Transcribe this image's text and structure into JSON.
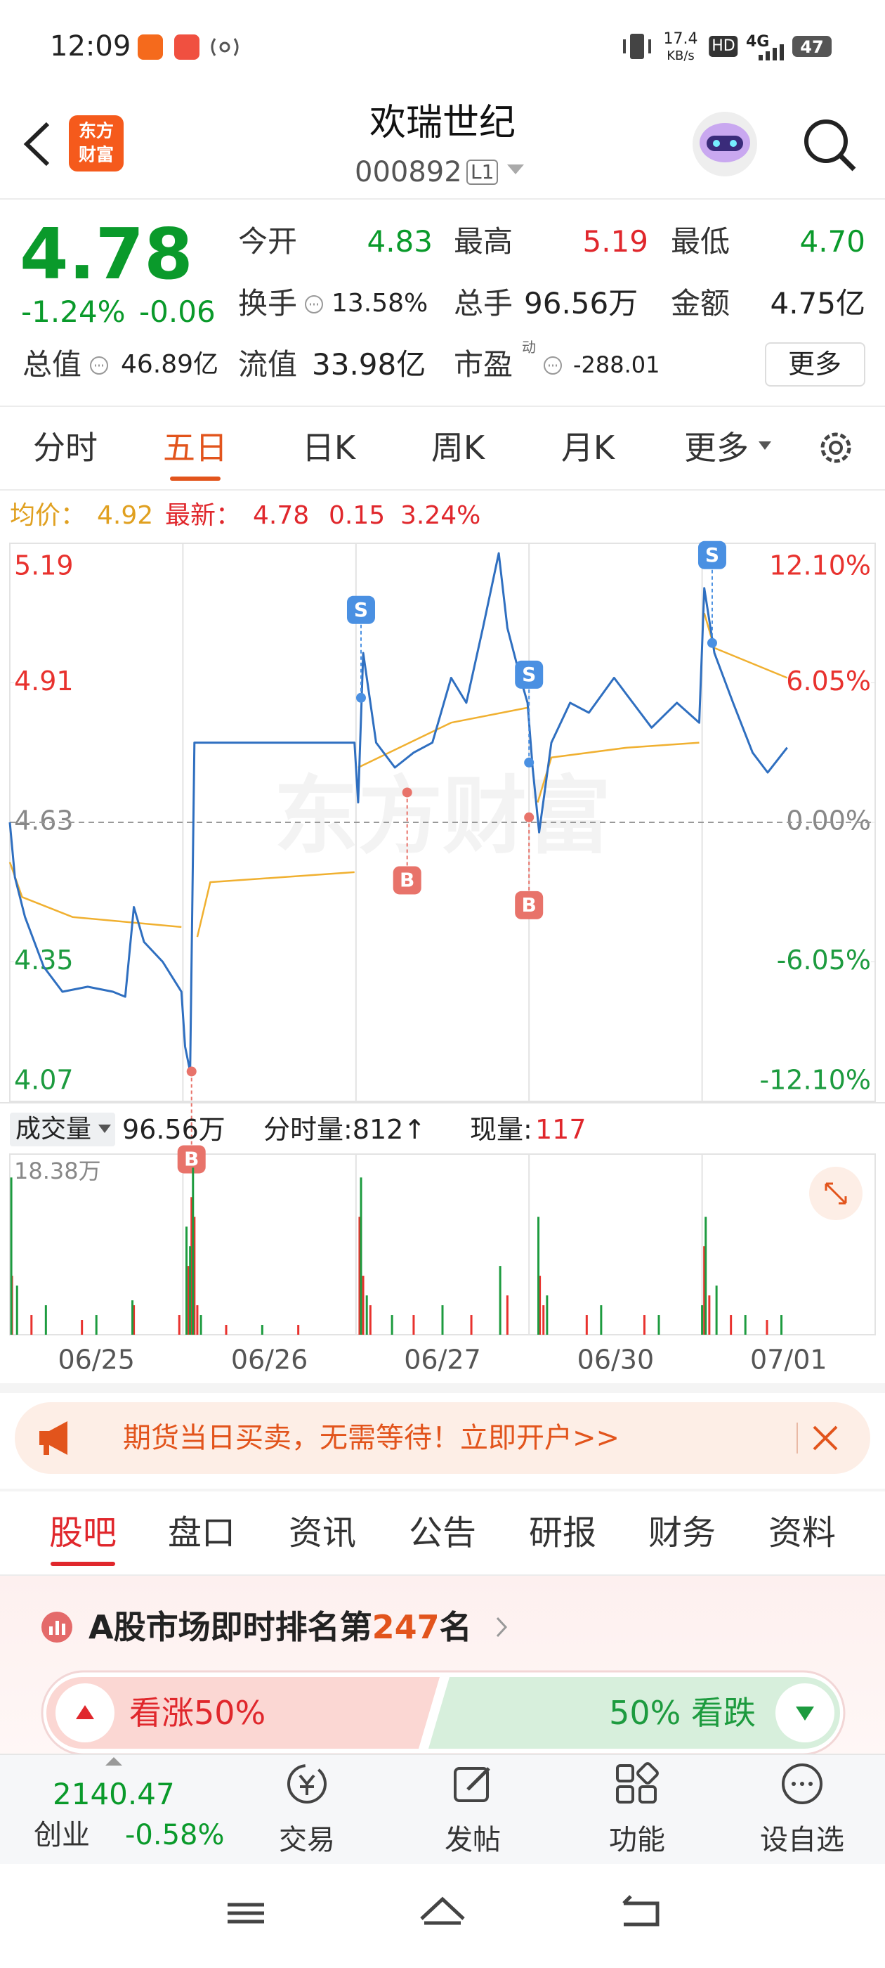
{
  "status_bar": {
    "time": "12:09",
    "net_speed": "17.4",
    "net_unit": "KB/s",
    "hd": "HD",
    "network": "4G",
    "battery": "47"
  },
  "header": {
    "logo": [
      "东方",
      "财富"
    ],
    "title": "欢瑞世纪",
    "code": "000892",
    "level": "L1"
  },
  "quote": {
    "price": "4.78",
    "change_pct": "-1.24%",
    "change": "-0.06",
    "open": {
      "label": "今开",
      "value": "4.83"
    },
    "high": {
      "label": "最高",
      "value": "5.19"
    },
    "low": {
      "label": "最低",
      "value": "4.70"
    },
    "turnover": {
      "label": "换手",
      "value": "13.58%"
    },
    "volume": {
      "label": "总手",
      "value": "96.56万"
    },
    "amount": {
      "label": "金额",
      "value": "4.75亿"
    },
    "market_cap": {
      "label": "总值",
      "value": "46.89亿"
    },
    "float_cap": {
      "label": "流值",
      "value": "33.98亿"
    },
    "pe": {
      "label": "市盈",
      "sup": "动",
      "value": "-288.01"
    },
    "more_button": "更多"
  },
  "chart_tabs": {
    "items": [
      "分时",
      "五日",
      "日K",
      "周K",
      "月K",
      "更多"
    ],
    "active": 1
  },
  "price_info": {
    "avg_label": "均价：",
    "avg": "4.92",
    "latest_label": "最新：",
    "latest": "4.78",
    "change": "0.15",
    "change_pct": "3.24%"
  },
  "intraday": {
    "type": "line",
    "watermark": "东方财富",
    "xlim": [
      0,
      1200
    ],
    "days": [
      "06/25",
      "06/26",
      "06/27",
      "06/30",
      "07/01"
    ],
    "ylim": [
      4.07,
      5.19
    ],
    "yticks": [
      5.19,
      4.91,
      4.63,
      4.35,
      4.07
    ],
    "y2lim": [
      -12.1,
      12.1
    ],
    "y2ticks": [
      {
        "value": 12.1,
        "label": "12.10%"
      },
      {
        "value": 6.05,
        "label": "6.05%"
      },
      {
        "value": 0,
        "label": "0.00%"
      },
      {
        "value": -6.05,
        "label": "-6.05%"
      },
      {
        "value": -12.1,
        "label": "-12.10%"
      }
    ],
    "reference_line": 4.63,
    "up_color": "#e8322e",
    "down_color": "#1d9b3f",
    "flat_color": "#888888",
    "price": {
      "color": "#2f6fc0",
      "x": [
        0,
        7,
        21,
        47,
        73,
        108,
        143,
        160,
        172,
        186,
        212,
        238,
        243,
        250,
        256,
        369,
        478,
        483,
        490,
        508,
        534,
        560,
        586,
        612,
        633,
        656,
        678,
        690,
        708,
        718,
        725,
        734,
        751,
        777,
        803,
        838,
        864,
        890,
        925,
        956,
        963,
        977,
        1003,
        1030,
        1051,
        1078
      ],
      "values": [
        4.63,
        4.52,
        4.44,
        4.34,
        4.29,
        4.3,
        4.29,
        4.28,
        4.46,
        4.39,
        4.35,
        4.29,
        4.18,
        4.13,
        4.79,
        4.79,
        4.79,
        4.67,
        4.97,
        4.79,
        4.74,
        4.77,
        4.79,
        4.92,
        4.87,
        5.02,
        5.17,
        5.02,
        4.92,
        4.87,
        4.74,
        4.61,
        4.79,
        4.87,
        4.85,
        4.92,
        4.87,
        4.82,
        4.87,
        4.83,
        5.1,
        4.97,
        4.87,
        4.77,
        4.73,
        4.78
      ]
    },
    "average": {
      "color": "#f0b030",
      "x": [
        0,
        17,
        87,
        238,
        240,
        260,
        278,
        478,
        480,
        483,
        612,
        718,
        720,
        732,
        751,
        856,
        956,
        960,
        963,
        977,
        1078
      ],
      "values": [
        4.55,
        4.48,
        4.44,
        4.42,
        null,
        4.4,
        4.51,
        4.53,
        null,
        4.74,
        4.83,
        4.86,
        null,
        4.67,
        4.76,
        4.78,
        4.79,
        null,
        5.05,
        4.98,
        4.92
      ]
    },
    "trades": [
      {
        "label": "B",
        "x": 252,
        "value": 4.13,
        "color": "#e8736a"
      },
      {
        "label": "S",
        "x": 487,
        "value": 4.88,
        "color": "#4a90e2"
      },
      {
        "label": "B",
        "x": 551,
        "value": 4.69,
        "color": "#e8736a"
      },
      {
        "label": "S",
        "x": 720,
        "value": 4.75,
        "color": "#4a90e2"
      },
      {
        "label": "B",
        "x": 720,
        "value": 4.64,
        "color": "#e8736a"
      },
      {
        "label": "S",
        "x": 974,
        "value": 4.99,
        "color": "#4a90e2"
      }
    ],
    "volume": {
      "ylim": [
        0,
        18.38
      ],
      "yticks": [
        {
          "value": 18.38,
          "label": "18.38万"
        }
      ],
      "up": {
        "color": "#e8322e",
        "x": [
          3,
          30,
          100,
          172,
          235,
          248,
          252,
          256,
          260,
          300,
          400,
          485,
          490,
          500,
          560,
          640,
          690,
          735,
          740,
          800,
          880,
          963,
          970,
          1000,
          1050
        ],
        "values": [
          6,
          2,
          1.5,
          3,
          2,
          7,
          14,
          12,
          3,
          1,
          1,
          12,
          6,
          3,
          2,
          2,
          4,
          6,
          3,
          2,
          2,
          9,
          4,
          2,
          1.5
        ]
      },
      "down": {
        "color": "#1d9b3f",
        "x": [
          2,
          10,
          50,
          120,
          170,
          245,
          250,
          254,
          265,
          350,
          487,
          495,
          530,
          600,
          680,
          733,
          745,
          820,
          900,
          960,
          965,
          980,
          1020,
          1070
        ],
        "values": [
          16,
          5,
          3,
          2,
          3.5,
          11,
          9,
          17,
          2,
          1,
          16,
          4,
          2,
          3,
          7,
          12,
          4,
          3,
          2,
          3,
          12,
          5,
          2,
          2
        ]
      }
    }
  },
  "volume_info": {
    "label": "成交量",
    "total": "96.56万",
    "minute_volume": "分时量:812↑",
    "current_label": "现量:",
    "current": "117"
  },
  "banner": {
    "text": "期货当日买卖，无需等待！立即开户>>"
  },
  "section_tabs": {
    "items": [
      "股吧",
      "盘口",
      "资讯",
      "公告",
      "研报",
      "财务",
      "资料"
    ],
    "active": 0
  },
  "rank": {
    "prefix": "A股市场即时排名第",
    "rank": "247",
    "suffix": "名"
  },
  "vote": {
    "bull": "看涨50%",
    "bear": "50% 看跌"
  },
  "bottom_bar": {
    "index_value": "2140.47",
    "index_name": "创业",
    "index_change": "-0.58%",
    "actions": [
      "交易",
      "发帖",
      "功能",
      "设自选"
    ]
  }
}
